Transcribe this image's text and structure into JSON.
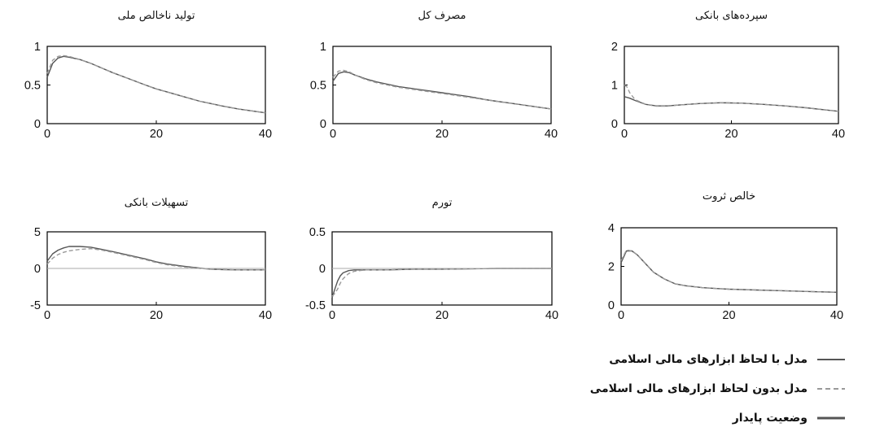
{
  "colors": {
    "islamic_model": "#555555",
    "no_islamic_model": "#999999",
    "steady_state": "#aaaaaa",
    "axes": "#000000"
  },
  "chart_data": [
    {
      "type": "line",
      "title": "تولید ناخالص ملی",
      "xlim": [
        0,
        40
      ],
      "ylim": [
        0,
        1
      ],
      "xticks": [
        0,
        20,
        40
      ],
      "yticks": [
        0,
        0.5,
        1
      ],
      "xtick_labels": [
        "0",
        "20",
        "40"
      ],
      "ytick_labels": [
        "0",
        "0.5",
        "1"
      ],
      "series": [
        {
          "name": "مدل با لحاظ ابزارهای مالی اسلامی",
          "style": "solid",
          "x": [
            0,
            1,
            2,
            3,
            4,
            6,
            8,
            10,
            12,
            15,
            18,
            20,
            22,
            25,
            28,
            30,
            32,
            35,
            38,
            40
          ],
          "y": [
            0.6,
            0.78,
            0.85,
            0.87,
            0.86,
            0.83,
            0.78,
            0.72,
            0.66,
            0.58,
            0.5,
            0.45,
            0.41,
            0.35,
            0.29,
            0.26,
            0.23,
            0.19,
            0.16,
            0.14
          ]
        },
        {
          "name": "مدل بدون لحاظ ابزارهای مالی اسلامی",
          "style": "dashed",
          "x": [
            0,
            1,
            2,
            3,
            4,
            6,
            8,
            10,
            12,
            15,
            18,
            20,
            22,
            25,
            28,
            30,
            32,
            35,
            38,
            40
          ],
          "y": [
            0.65,
            0.82,
            0.87,
            0.88,
            0.87,
            0.83,
            0.78,
            0.72,
            0.66,
            0.58,
            0.5,
            0.45,
            0.41,
            0.35,
            0.29,
            0.26,
            0.23,
            0.19,
            0.16,
            0.14
          ]
        }
      ]
    },
    {
      "type": "line",
      "title": "مصرف کل",
      "xlim": [
        0,
        40
      ],
      "ylim": [
        0,
        1
      ],
      "xticks": [
        0,
        20,
        40
      ],
      "yticks": [
        0,
        0.5,
        1
      ],
      "xtick_labels": [
        "0",
        "20",
        "40"
      ],
      "ytick_labels": [
        "0",
        "0.5",
        "1"
      ],
      "series": [
        {
          "name": "مدل با لحاظ ابزارهای مالی اسلامی",
          "style": "solid",
          "x": [
            0,
            1,
            2,
            3,
            4,
            6,
            8,
            10,
            12,
            15,
            18,
            20,
            22,
            25,
            28,
            30,
            32,
            35,
            38,
            40
          ],
          "y": [
            0.55,
            0.65,
            0.67,
            0.66,
            0.63,
            0.58,
            0.54,
            0.51,
            0.48,
            0.45,
            0.42,
            0.4,
            0.38,
            0.35,
            0.31,
            0.29,
            0.27,
            0.24,
            0.21,
            0.19
          ]
        },
        {
          "name": "مدل بدون لحاظ ابزارهای مالی اسلامی",
          "style": "dashed",
          "x": [
            0,
            1,
            2,
            3,
            4,
            6,
            8,
            10,
            12,
            15,
            18,
            20,
            22,
            25,
            28,
            30,
            32,
            35,
            38,
            40
          ],
          "y": [
            0.6,
            0.68,
            0.69,
            0.67,
            0.63,
            0.57,
            0.53,
            0.5,
            0.47,
            0.44,
            0.41,
            0.39,
            0.37,
            0.34,
            0.31,
            0.29,
            0.27,
            0.24,
            0.21,
            0.19
          ]
        }
      ]
    },
    {
      "type": "line",
      "title": "سپرده‌های بانکی",
      "xlim": [
        0,
        40
      ],
      "ylim": [
        0,
        2
      ],
      "xticks": [
        0,
        20,
        40
      ],
      "yticks": [
        0,
        1,
        2
      ],
      "xtick_labels": [
        "0",
        "20",
        "40"
      ],
      "ytick_labels": [
        "0",
        "1",
        "2"
      ],
      "series": [
        {
          "name": "مدل با لحاظ ابزارهای مالی اسلامی",
          "style": "solid",
          "x": [
            0,
            1,
            2,
            4,
            6,
            8,
            10,
            14,
            18,
            22,
            26,
            30,
            34,
            38,
            40
          ],
          "y": [
            0.7,
            0.66,
            0.6,
            0.5,
            0.46,
            0.46,
            0.48,
            0.52,
            0.54,
            0.53,
            0.5,
            0.46,
            0.41,
            0.35,
            0.32
          ]
        },
        {
          "name": "مدل بدون لحاظ ابزارهای مالی اسلامی",
          "style": "dashed",
          "x": [
            0,
            0.5,
            1,
            2,
            4,
            6,
            8,
            10,
            14,
            18,
            22,
            26,
            30,
            34,
            38,
            40
          ],
          "y": [
            1.0,
            0.95,
            0.8,
            0.62,
            0.5,
            0.45,
            0.45,
            0.48,
            0.52,
            0.54,
            0.53,
            0.5,
            0.46,
            0.41,
            0.35,
            0.32
          ]
        }
      ]
    },
    {
      "type": "line",
      "title": "تسهیلات بانکی",
      "xlim": [
        0,
        40
      ],
      "ylim": [
        -5,
        5
      ],
      "xticks": [
        0,
        20,
        40
      ],
      "yticks": [
        -5,
        0,
        5
      ],
      "xtick_labels": [
        "0",
        "20",
        "40"
      ],
      "ytick_labels": [
        "-5",
        "0",
        "5"
      ],
      "series": [
        {
          "name": "مدل با لحاظ ابزارهای مالی اسلامی",
          "style": "solid",
          "x": [
            0,
            1,
            2,
            3,
            4,
            5,
            6,
            8,
            10,
            12,
            15,
            18,
            20,
            22,
            25,
            28,
            30,
            32,
            35,
            38,
            40
          ],
          "y": [
            1.0,
            2.0,
            2.5,
            2.8,
            3.0,
            3.0,
            3.0,
            2.9,
            2.6,
            2.3,
            1.8,
            1.3,
            0.9,
            0.6,
            0.3,
            0.05,
            -0.1,
            -0.15,
            -0.2,
            -0.2,
            -0.2
          ]
        },
        {
          "name": "مدل بدون لحاظ ابزارهای مالی اسلامی",
          "style": "dashed",
          "x": [
            0,
            1,
            2,
            3,
            4,
            5,
            6,
            8,
            10,
            12,
            15,
            18,
            20,
            22,
            25,
            28,
            30,
            32,
            35,
            38,
            40
          ],
          "y": [
            0.6,
            1.4,
            1.9,
            2.2,
            2.4,
            2.5,
            2.6,
            2.7,
            2.5,
            2.2,
            1.7,
            1.2,
            0.8,
            0.5,
            0.2,
            0.0,
            -0.1,
            -0.15,
            -0.2,
            -0.2,
            -0.2
          ]
        },
        {
          "name": "وضعیت پایدار",
          "style": "steady",
          "x": [
            0,
            40
          ],
          "y": [
            0,
            0
          ]
        }
      ]
    },
    {
      "type": "line",
      "title": "تورم",
      "xlim": [
        0,
        40
      ],
      "ylim": [
        -0.5,
        0.5
      ],
      "xticks": [
        0,
        20,
        40
      ],
      "yticks": [
        -0.5,
        0,
        0.5
      ],
      "xtick_labels": [
        "0",
        "20",
        "40"
      ],
      "ytick_labels": [
        "-0.5",
        "0",
        "0.5"
      ],
      "series": [
        {
          "name": "مدل با لحاظ ابزارهای مالی اسلامی",
          "style": "solid",
          "x": [
            0,
            0.5,
            1,
            1.5,
            2,
            3,
            4,
            5,
            6,
            8,
            10,
            15,
            20,
            30,
            40
          ],
          "y": [
            -0.4,
            -0.28,
            -0.17,
            -0.1,
            -0.06,
            -0.03,
            -0.02,
            -0.02,
            -0.02,
            -0.02,
            -0.02,
            -0.01,
            -0.01,
            0,
            0
          ]
        },
        {
          "name": "مدل بدون لحاظ ابزارهای مالی اسلامی",
          "style": "dashed",
          "x": [
            0,
            0.5,
            1,
            1.5,
            2,
            3,
            4,
            5,
            6,
            8,
            10,
            15,
            20,
            30,
            40
          ],
          "y": [
            -0.38,
            -0.34,
            -0.28,
            -0.2,
            -0.14,
            -0.07,
            -0.04,
            -0.03,
            -0.02,
            -0.02,
            -0.02,
            -0.01,
            -0.01,
            0,
            0
          ]
        },
        {
          "name": "وضعیت پایدار",
          "style": "steady",
          "x": [
            0,
            40
          ],
          "y": [
            0,
            0
          ]
        }
      ]
    },
    {
      "type": "line",
      "title": "خالص ثروت",
      "xlim": [
        0,
        40
      ],
      "ylim": [
        0,
        4
      ],
      "xticks": [
        0,
        20,
        40
      ],
      "yticks": [
        0,
        2,
        4
      ],
      "xtick_labels": [
        "0",
        "20",
        "40"
      ],
      "ytick_labels": [
        "0",
        "2",
        "4"
      ],
      "series": [
        {
          "name": "مدل با لحاظ ابزارهای مالی اسلامی",
          "style": "solid",
          "x": [
            0,
            1,
            2,
            3,
            4,
            6,
            8,
            10,
            12,
            15,
            18,
            20,
            25,
            30,
            35,
            40
          ],
          "y": [
            2.2,
            2.8,
            2.8,
            2.6,
            2.3,
            1.7,
            1.35,
            1.1,
            1.0,
            0.9,
            0.85,
            0.82,
            0.78,
            0.74,
            0.7,
            0.66
          ]
        },
        {
          "name": "مدل بدون لحاظ ابزارهای مالی اسلامی",
          "style": "dashed",
          "x": [
            0,
            1,
            2,
            3,
            4,
            6,
            8,
            10,
            12,
            15,
            18,
            20,
            25,
            30,
            35,
            40
          ],
          "y": [
            2.3,
            2.85,
            2.8,
            2.6,
            2.3,
            1.7,
            1.35,
            1.1,
            1.0,
            0.9,
            0.85,
            0.82,
            0.78,
            0.74,
            0.7,
            0.66
          ]
        }
      ]
    }
  ],
  "legend": {
    "items": [
      {
        "label": "مدل با لحاظ ابزارهای مالی اسلامی",
        "style": "solid"
      },
      {
        "label": "مدل بدون لحاظ ابزارهای مالی اسلامی",
        "style": "dashed"
      },
      {
        "label": "وضعیت پایدار",
        "style": "steady"
      }
    ]
  }
}
